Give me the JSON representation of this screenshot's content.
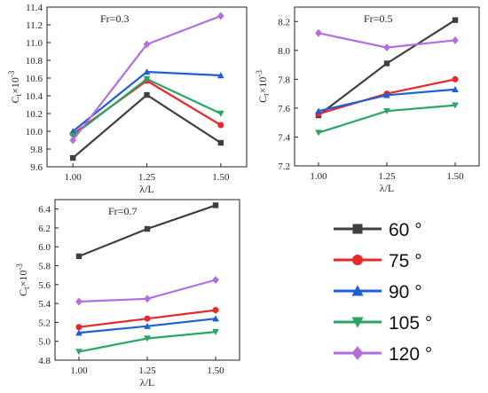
{
  "chart_data": [
    {
      "type": "line",
      "annotation": "Fr=0.3",
      "xlabel": "λ/L",
      "ylabel": "C",
      "ylabel_sub": "t",
      "ylabel_rest": "×10",
      "ylabel_sup": "-3",
      "x": [
        1.0,
        1.25,
        1.5
      ],
      "x_ticks": [
        "1.00",
        "1.25",
        "1.50"
      ],
      "ylim": [
        9.6,
        11.4
      ],
      "y_ticks": [
        "9.6",
        "9.8",
        "10.0",
        "10.2",
        "10.4",
        "10.6",
        "10.8",
        "11.0",
        "11.2",
        "11.4"
      ],
      "series": [
        {
          "name": "60 °",
          "values": [
            9.7,
            10.41,
            9.87
          ]
        },
        {
          "name": "75 °",
          "values": [
            9.97,
            10.57,
            10.07
          ]
        },
        {
          "name": "90 °",
          "values": [
            10.0,
            10.67,
            10.63
          ]
        },
        {
          "name": "105 °",
          "values": [
            9.95,
            10.59,
            10.2
          ]
        },
        {
          "name": "120 °",
          "values": [
            9.9,
            10.98,
            11.3
          ]
        }
      ]
    },
    {
      "type": "line",
      "annotation": "Fr=0.5",
      "xlabel": "λ/L",
      "ylabel": "C",
      "ylabel_sub": "t",
      "ylabel_rest": "×10",
      "ylabel_sup": "-3",
      "x": [
        1.0,
        1.25,
        1.5
      ],
      "x_ticks": [
        "1.00",
        "1.25",
        "1.50"
      ],
      "ylim": [
        7.2,
        8.3
      ],
      "y_ticks": [
        "7.2",
        "7.4",
        "7.6",
        "7.8",
        "8.0",
        "8.2"
      ],
      "series": [
        {
          "name": "60 °",
          "values": [
            7.55,
            7.91,
            8.21
          ]
        },
        {
          "name": "75 °",
          "values": [
            7.56,
            7.7,
            7.8
          ]
        },
        {
          "name": "90 °",
          "values": [
            7.58,
            7.69,
            7.73
          ]
        },
        {
          "name": "105 °",
          "values": [
            7.43,
            7.58,
            7.62
          ]
        },
        {
          "name": "120 °",
          "values": [
            8.12,
            8.02,
            8.07
          ]
        }
      ]
    },
    {
      "type": "line",
      "annotation": "Fr=0.7",
      "xlabel": "λ/L",
      "ylabel": "C",
      "ylabel_sub": "t",
      "ylabel_rest": "×10",
      "ylabel_sup": "-3",
      "x": [
        1.0,
        1.25,
        1.5
      ],
      "x_ticks": [
        "1.00",
        "1.25",
        "1.50"
      ],
      "ylim": [
        4.8,
        6.5
      ],
      "y_ticks": [
        "4.8",
        "5.0",
        "5.2",
        "5.4",
        "5.6",
        "5.8",
        "6.0",
        "6.2",
        "6.4"
      ],
      "series": [
        {
          "name": "60 °",
          "values": [
            5.9,
            6.19,
            6.44
          ]
        },
        {
          "name": "75 °",
          "values": [
            5.15,
            5.24,
            5.33
          ]
        },
        {
          "name": "90 °",
          "values": [
            5.09,
            5.16,
            5.24
          ]
        },
        {
          "name": "105 °",
          "values": [
            4.89,
            5.03,
            5.1
          ]
        },
        {
          "name": "120 °",
          "values": [
            5.42,
            5.45,
            5.65
          ]
        }
      ]
    }
  ],
  "legend": [
    {
      "label": "60 °",
      "color": "#3f3f3f",
      "marker": "square"
    },
    {
      "label": "75 °",
      "color": "#e8282b",
      "marker": "circle"
    },
    {
      "label": "90 °",
      "color": "#1f5fd6",
      "marker": "triangle-up"
    },
    {
      "label": "105 °",
      "color": "#2aa564",
      "marker": "triangle-down"
    },
    {
      "label": "120 °",
      "color": "#b26ee0",
      "marker": "diamond"
    }
  ]
}
